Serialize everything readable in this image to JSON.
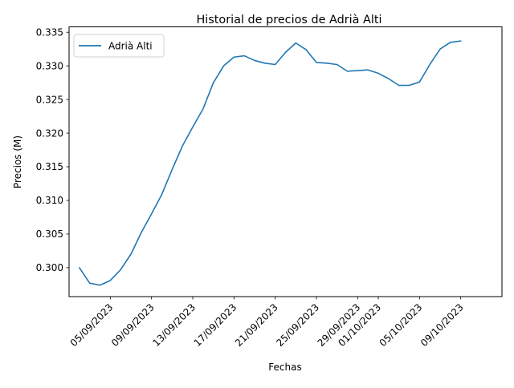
{
  "chart_data": {
    "type": "line",
    "title": "Historial de precios de Adrià Alti",
    "xlabel": "Fechas",
    "ylabel": "Precios (M)",
    "x_tick_labels": [
      "05/09/2023",
      "09/09/2023",
      "13/09/2023",
      "17/09/2023",
      "21/09/2023",
      "25/09/2023",
      "29/09/2023",
      "01/10/2023",
      "05/10/2023",
      "09/10/2023"
    ],
    "y_tick_labels": [
      "0.300",
      "0.305",
      "0.310",
      "0.315",
      "0.320",
      "0.325",
      "0.330",
      "0.335"
    ],
    "xlim": [
      "2023-09-01",
      "2023-10-13"
    ],
    "ylim": [
      0.2957,
      0.3358
    ],
    "grid": false,
    "legend": {
      "placement": "upper left"
    },
    "series": [
      {
        "name": "Adrià Alti",
        "color": "#1f77b4",
        "points": [
          [
            "2023-09-02",
            0.3
          ],
          [
            "2023-09-03",
            0.2977
          ],
          [
            "2023-09-04",
            0.2974
          ],
          [
            "2023-09-05",
            0.2981
          ],
          [
            "2023-09-06",
            0.2997
          ],
          [
            "2023-09-07",
            0.302
          ],
          [
            "2023-09-08",
            0.3052
          ],
          [
            "2023-09-09",
            0.308
          ],
          [
            "2023-09-10",
            0.3109
          ],
          [
            "2023-09-11",
            0.3146
          ],
          [
            "2023-09-12",
            0.3181
          ],
          [
            "2023-09-13",
            0.3209
          ],
          [
            "2023-09-14",
            0.3236
          ],
          [
            "2023-09-15",
            0.3275
          ],
          [
            "2023-09-16",
            0.33
          ],
          [
            "2023-09-17",
            0.3313
          ],
          [
            "2023-09-18",
            0.3315
          ],
          [
            "2023-09-19",
            0.3308
          ],
          [
            "2023-09-20",
            0.3304
          ],
          [
            "2023-09-21",
            0.3302
          ],
          [
            "2023-09-22",
            0.332
          ],
          [
            "2023-09-23",
            0.3334
          ],
          [
            "2023-09-24",
            0.3324
          ],
          [
            "2023-09-25",
            0.3305
          ],
          [
            "2023-09-26",
            0.3304
          ],
          [
            "2023-09-27",
            0.3302
          ],
          [
            "2023-09-28",
            0.3292
          ],
          [
            "2023-09-29",
            0.3293
          ],
          [
            "2023-09-30",
            0.3294
          ],
          [
            "2023-10-01",
            0.3289
          ],
          [
            "2023-10-02",
            0.3281
          ],
          [
            "2023-10-03",
            0.3271
          ],
          [
            "2023-10-04",
            0.3271
          ],
          [
            "2023-10-05",
            0.3276
          ],
          [
            "2023-10-06",
            0.3302
          ],
          [
            "2023-10-07",
            0.3325
          ],
          [
            "2023-10-08",
            0.3335
          ],
          [
            "2023-10-09",
            0.3337
          ]
        ]
      }
    ]
  }
}
